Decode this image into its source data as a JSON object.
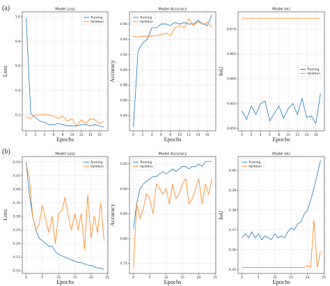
{
  "panels": [
    "(a)",
    "(b)"
  ],
  "chart_data": [
    {
      "type": "line",
      "title": "Model Loss",
      "xlabel": "Epochs",
      "ylabel": "Loss",
      "grid": true,
      "legend": "upper right",
      "x": [
        0,
        1,
        2,
        3,
        4,
        5,
        6,
        7,
        8,
        9,
        10,
        11,
        12,
        13,
        14,
        15,
        16,
        17
      ],
      "xlim": [
        -0.85,
        17.85
      ],
      "xticks": [
        0,
        2,
        4,
        6,
        8,
        10,
        12,
        14,
        16
      ],
      "ylim": [
        0.07,
        1.04
      ],
      "yticks": [
        0.2,
        0.4,
        0.6,
        0.8,
        {
          "value": 1.0,
          "label": "1.0"
        }
      ],
      "series": [
        {
          "name": "Training",
          "color": "#1f77b4",
          "values": [
            0.99,
            0.21,
            0.18,
            0.15,
            0.14,
            0.12,
            0.12,
            0.13,
            0.12,
            0.11,
            0.11,
            0.11,
            0.12,
            0.12,
            0.11,
            0.12,
            0.11,
            0.1
          ]
        },
        {
          "name": "Validtion",
          "color": "#ff7f0e",
          "values": [
            0.18,
            0.17,
            0.2,
            0.2,
            0.2,
            0.2,
            0.19,
            0.17,
            0.19,
            0.15,
            0.17,
            0.11,
            0.16,
            0.13,
            0.17,
            0.16,
            0.13,
            0.15
          ]
        }
      ]
    },
    {
      "type": "line",
      "title": "Model Accuracy",
      "xlabel": "Epochs",
      "ylabel": "Accuracy",
      "grid": true,
      "legend": "upper left",
      "x": [
        0,
        1,
        2,
        3,
        4,
        5,
        6,
        7,
        8,
        9,
        10,
        11,
        12,
        13,
        14,
        15,
        16,
        17
      ],
      "xlim": [
        -0.85,
        17.85
      ],
      "xticks": [
        0,
        2,
        4,
        6,
        8,
        10,
        12,
        14,
        16
      ],
      "ylim": [
        0.82,
        0.976
      ],
      "yticks": [
        0.84,
        0.86,
        0.88,
        {
          "value": 0.9,
          "label": "0.90"
        },
        0.92,
        0.94,
        0.96
      ],
      "series": [
        {
          "name": "Training",
          "color": "#1f77b4",
          "values": [
            0.825,
            0.925,
            0.935,
            0.94,
            0.955,
            0.955,
            0.96,
            0.96,
            0.958,
            0.962,
            0.96,
            0.962,
            0.96,
            0.96,
            0.965,
            0.96,
            0.958,
            0.972
          ]
        },
        {
          "name": "Validtion",
          "color": "#ff7f0e",
          "values": [
            0.944,
            0.943,
            0.944,
            0.944,
            0.944,
            0.945,
            0.946,
            0.948,
            0.945,
            0.955,
            0.958,
            0.955,
            0.967,
            0.958,
            0.963,
            0.96,
            0.962,
            0.956
          ]
        }
      ]
    },
    {
      "type": "line",
      "title": "Model IoU",
      "xlabel": "Epochs",
      "ylabel": "IoU",
      "grid": true,
      "legend": "center right",
      "x": [
        0,
        1,
        2,
        3,
        4,
        5,
        6,
        7,
        8,
        9,
        10,
        11,
        12,
        13,
        14,
        15,
        16,
        17
      ],
      "xlim": [
        -0.85,
        17.85
      ],
      "xticks": [
        0,
        2,
        4,
        6,
        8,
        10,
        12,
        14,
        16
      ],
      "ylim": [
        0.6495,
        0.6735
      ],
      "yticks": [
        {
          "value": 0.65,
          "label": "0.650"
        },
        {
          "value": 0.655,
          "label": "0.655"
        },
        {
          "value": 0.66,
          "label": "0.660"
        },
        {
          "value": 0.665,
          "label": "0.665"
        },
        {
          "value": 0.67,
          "label": "0.670"
        }
      ],
      "series": [
        {
          "name": "Training",
          "color": "#1f77b4",
          "values": [
            0.6535,
            0.6518,
            0.6545,
            0.6528,
            0.655,
            0.6555,
            0.6515,
            0.653,
            0.6545,
            0.652,
            0.654,
            0.655,
            0.6528,
            0.656,
            0.6522,
            0.6525,
            0.651,
            0.657
          ]
        },
        {
          "name": "Validtion",
          "color": "#ff7f0e",
          "values": [
            0.6722,
            0.6722,
            0.6722,
            0.6722,
            0.6722,
            0.6722,
            0.6722,
            0.6722,
            0.6722,
            0.6722,
            0.6722,
            0.6722,
            0.6722,
            0.6722,
            0.6722,
            0.6722,
            0.6722,
            0.6722
          ]
        }
      ]
    },
    {
      "type": "line",
      "title": "Model Loss",
      "xlabel": "Epochs",
      "ylabel": "Loss",
      "grid": true,
      "legend": "upper right",
      "x": [
        0,
        1,
        2,
        3,
        4,
        5,
        6,
        7,
        8,
        9,
        10,
        11,
        12,
        13,
        14,
        15,
        16,
        17,
        18,
        19,
        20,
        21,
        22,
        23,
        24
      ],
      "xlim": [
        -1.2,
        25.2
      ],
      "xticks": [
        0,
        5,
        10,
        15,
        20,
        25
      ],
      "ylim": [
        0.09,
        0.52
      ],
      "yticks": [
        {
          "value": 0.1,
          "label": "0.10"
        },
        0.15,
        {
          "value": 0.2,
          "label": "0.20"
        },
        0.25,
        {
          "value": 0.3,
          "label": "0.30"
        },
        0.35,
        {
          "value": 0.4,
          "label": "0.40"
        },
        0.45,
        {
          "value": 0.5,
          "label": "0.50"
        }
      ],
      "series": [
        {
          "name": "Training",
          "color": "#1f77b4",
          "values": [
            0.5,
            0.38,
            0.3,
            0.25,
            0.22,
            0.21,
            0.2,
            0.19,
            0.19,
            0.17,
            0.16,
            0.155,
            0.15,
            0.145,
            0.14,
            0.135,
            0.13,
            0.13,
            0.125,
            0.12,
            0.12,
            0.115,
            0.11,
            0.11,
            0.105
          ]
        },
        {
          "name": "Validtion",
          "color": "#ff7f0e",
          "values": [
            0.49,
            0.44,
            0.3,
            0.25,
            0.27,
            0.34,
            0.29,
            0.24,
            0.3,
            0.2,
            0.31,
            0.32,
            0.37,
            0.3,
            0.25,
            0.31,
            0.25,
            0.31,
            0.18,
            0.38,
            0.22,
            0.3,
            0.24,
            0.35,
            0.21
          ]
        }
      ]
    },
    {
      "type": "line",
      "title": "Model Accuracy",
      "xlabel": "Epochs",
      "ylabel": "Accuracy",
      "grid": true,
      "legend": "upper left",
      "x": [
        0,
        1,
        2,
        3,
        4,
        5,
        6,
        7,
        8,
        9,
        10,
        11,
        12,
        13,
        14,
        15,
        16,
        17,
        18,
        19,
        20,
        21,
        22,
        23,
        24
      ],
      "xlim": [
        -1.2,
        25.2
      ],
      "xticks": [
        0,
        5,
        10,
        15,
        20,
        25
      ],
      "ylim": [
        0.73,
        0.965
      ],
      "yticks": [
        0.75,
        {
          "value": 0.8,
          "label": "0.80"
        },
        0.85,
        {
          "value": 0.9,
          "label": "0.90"
        },
        0.95
      ],
      "series": [
        {
          "name": "Training",
          "color": "#1f77b4",
          "values": [
            0.82,
            0.87,
            0.9,
            0.91,
            0.915,
            0.92,
            0.925,
            0.925,
            0.93,
            0.935,
            0.93,
            0.935,
            0.94,
            0.935,
            0.94,
            0.945,
            0.945,
            0.94,
            0.945,
            0.945,
            0.95,
            0.945,
            0.955,
            0.955,
            0.955
          ]
        },
        {
          "name": "Validtion",
          "color": "#ff7f0e",
          "values": [
            0.74,
            0.87,
            0.84,
            0.86,
            0.89,
            0.88,
            0.85,
            0.91,
            0.9,
            0.89,
            0.9,
            0.87,
            0.91,
            0.88,
            0.89,
            0.91,
            0.92,
            0.87,
            0.88,
            0.9,
            0.92,
            0.87,
            0.91,
            0.89,
            0.92
          ]
        }
      ]
    },
    {
      "type": "line",
      "title": "Model IoU",
      "xlabel": "Epochs",
      "ylabel": "IoU",
      "grid": true,
      "legend": "upper left",
      "x": [
        0,
        1,
        2,
        3,
        4,
        5,
        6,
        7,
        8,
        9,
        10,
        11,
        12,
        13,
        14,
        15,
        16,
        17,
        18,
        19,
        20,
        21,
        22,
        23,
        24
      ],
      "xlim": [
        -1.2,
        25.2
      ],
      "xticks": [
        0,
        5,
        10,
        15,
        20,
        25
      ],
      "ylim": [
        0.348,
        0.407
      ],
      "yticks": [
        0.35,
        0.36,
        0.37,
        0.38,
        0.39,
        {
          "value": 0.4,
          "label": "0.40"
        }
      ],
      "series": [
        {
          "name": "Training",
          "color": "#1f77b4",
          "values": [
            0.366,
            0.368,
            0.366,
            0.369,
            0.366,
            0.368,
            0.365,
            0.367,
            0.366,
            0.365,
            0.368,
            0.366,
            0.367,
            0.366,
            0.369,
            0.371,
            0.37,
            0.373,
            0.374,
            0.378,
            0.38,
            0.385,
            0.391,
            0.398,
            0.405
          ]
        },
        {
          "name": "Validtion",
          "color": "#ff7f0e",
          "values": [
            0.351,
            0.351,
            0.351,
            0.351,
            0.351,
            0.351,
            0.351,
            0.351,
            0.351,
            0.351,
            0.351,
            0.351,
            0.351,
            0.351,
            0.351,
            0.351,
            0.351,
            0.351,
            0.351,
            0.351,
            0.352,
            0.351,
            0.375,
            0.351,
            0.359
          ]
        }
      ]
    }
  ]
}
